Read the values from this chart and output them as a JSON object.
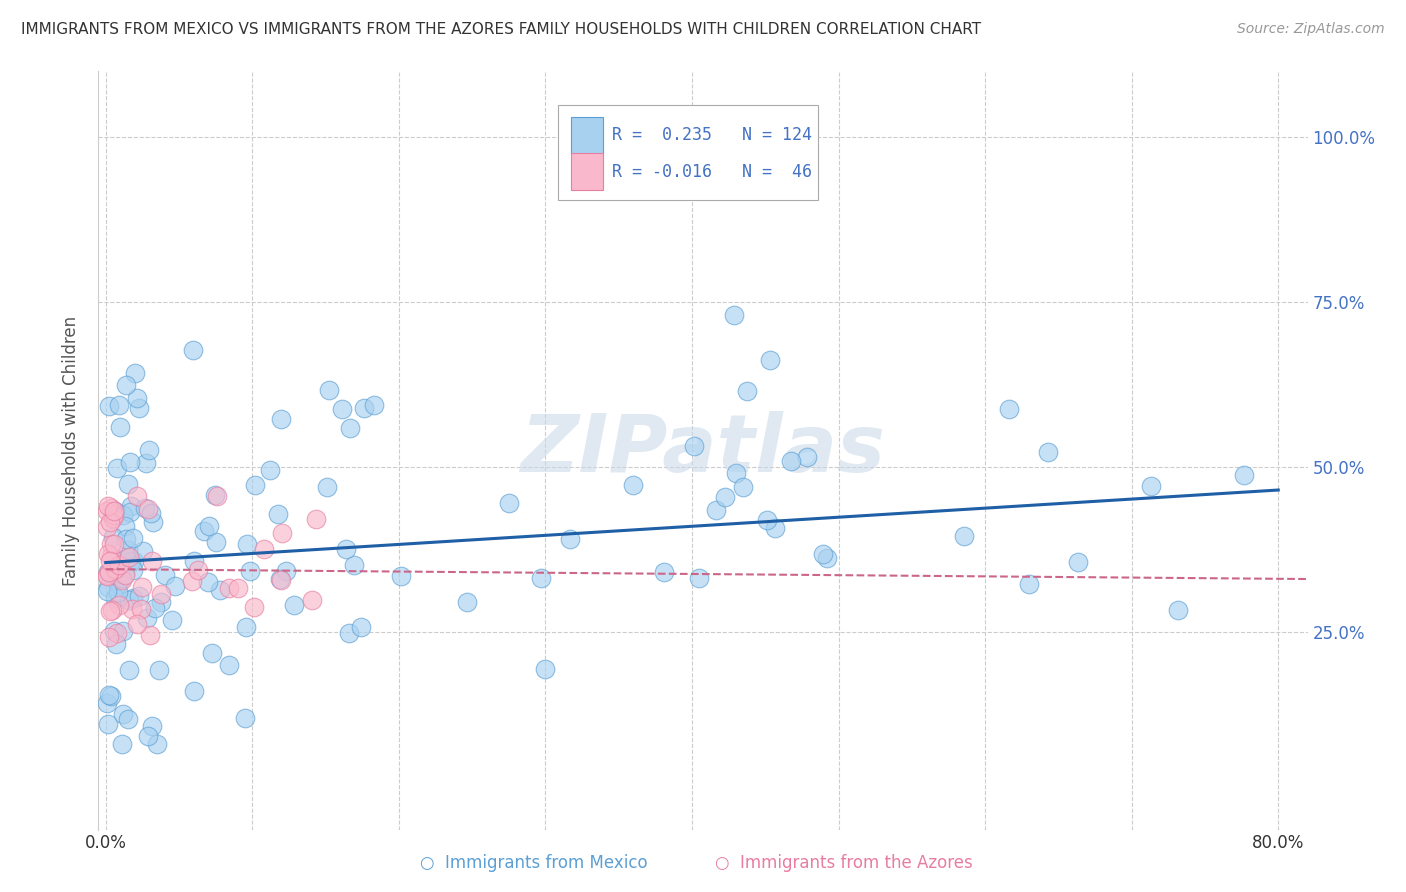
{
  "title": "IMMIGRANTS FROM MEXICO VS IMMIGRANTS FROM THE AZORES FAMILY HOUSEHOLDS WITH CHILDREN CORRELATION CHART",
  "source": "Source: ZipAtlas.com",
  "ylabel": "Family Households with Children",
  "xlim": [
    -0.005,
    0.82
  ],
  "ylim": [
    -0.05,
    1.1
  ],
  "xtick_positions": [
    0.0,
    0.1,
    0.2,
    0.3,
    0.4,
    0.5,
    0.6,
    0.7,
    0.8
  ],
  "xticklabels": [
    "0.0%",
    "",
    "",
    "",
    "",
    "",
    "",
    "",
    "80.0%"
  ],
  "ytick_positions": [
    0.25,
    0.5,
    0.75,
    1.0
  ],
  "ytick_labels": [
    "25.0%",
    "50.0%",
    "75.0%",
    "100.0%"
  ],
  "mexico_color": "#a8d1f0",
  "mexico_edge": "#5b9fd4",
  "azores_color": "#f9b8cc",
  "azores_edge": "#e87da0",
  "trend_mexico_color": "#1f5fa6",
  "trend_azores_color": "#cc6688",
  "trend_mexico_x0": 0.0,
  "trend_mexico_y0": 0.355,
  "trend_mexico_x1": 0.8,
  "trend_mexico_y1": 0.465,
  "trend_azores_x0": 0.0,
  "trend_azores_y0": 0.345,
  "trend_azores_x1": 0.82,
  "trend_azores_y1": 0.33,
  "R_mexico": 0.235,
  "N_mexico": 124,
  "R_azores": -0.016,
  "N_azores": 46,
  "watermark": "ZIPatlas",
  "legend_label_mexico": "Immigrants from Mexico",
  "legend_label_azores": "Immigrants from the Azores",
  "title_color": "#333333",
  "source_color": "#999999",
  "tick_label_color": "#4472c4",
  "grid_color": "#cccccc",
  "ylabel_color": "#555555"
}
